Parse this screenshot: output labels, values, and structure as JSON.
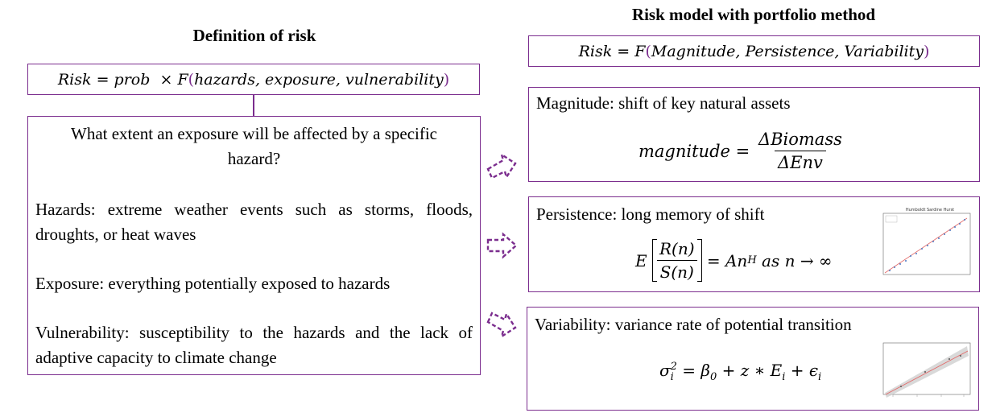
{
  "left": {
    "heading": "Definition of risk",
    "formula": {
      "lhs": "Risk",
      "eq": "=",
      "prob": "prob",
      "times": "×",
      "F": "F",
      "args": "hazards, exposure, vulnerability"
    },
    "question": "What extent an exposure will be affected by a specific hazard?",
    "hazards": "Hazards: extreme weather events such as storms, floods, droughts, or heat waves",
    "exposure": "Exposure: everything potentially exposed to hazards",
    "vulnerability": "Vulnerability: susceptibility to the hazards and the lack of adaptive capacity to climate change"
  },
  "right": {
    "heading": "Risk model with portfolio method",
    "formula": {
      "lhs": "Risk",
      "eq": "=",
      "F": "F",
      "args": "Magnitude, Persistence, Variability"
    },
    "magnitude": {
      "title": "Magnitude: shift of key natural assets",
      "lhs": "magnitude",
      "eq": "=",
      "num": "ΔBiomass",
      "den": "ΔEnv"
    },
    "persistence": {
      "title": "Persistence: long memory of shift",
      "E": "E",
      "num": "R(n)",
      "den": "S(n)",
      "rhs": "= An",
      "sup": "H",
      "tail": "as n → ∞",
      "plot_title": "Humboldt Sardine Hurst"
    },
    "variability": {
      "title": "Variability: variance rate of potential transition",
      "formula": "σ",
      "sub_i": "i",
      "sup_2": "2",
      "rest": "= β",
      "sub0": "0",
      "mid": "+ z ∗ E",
      "subE": "i",
      "end": "+ ϵ",
      "subeps": "i"
    }
  },
  "colors": {
    "border": "#7b2d8e",
    "arrow": "#7b2d8e"
  }
}
